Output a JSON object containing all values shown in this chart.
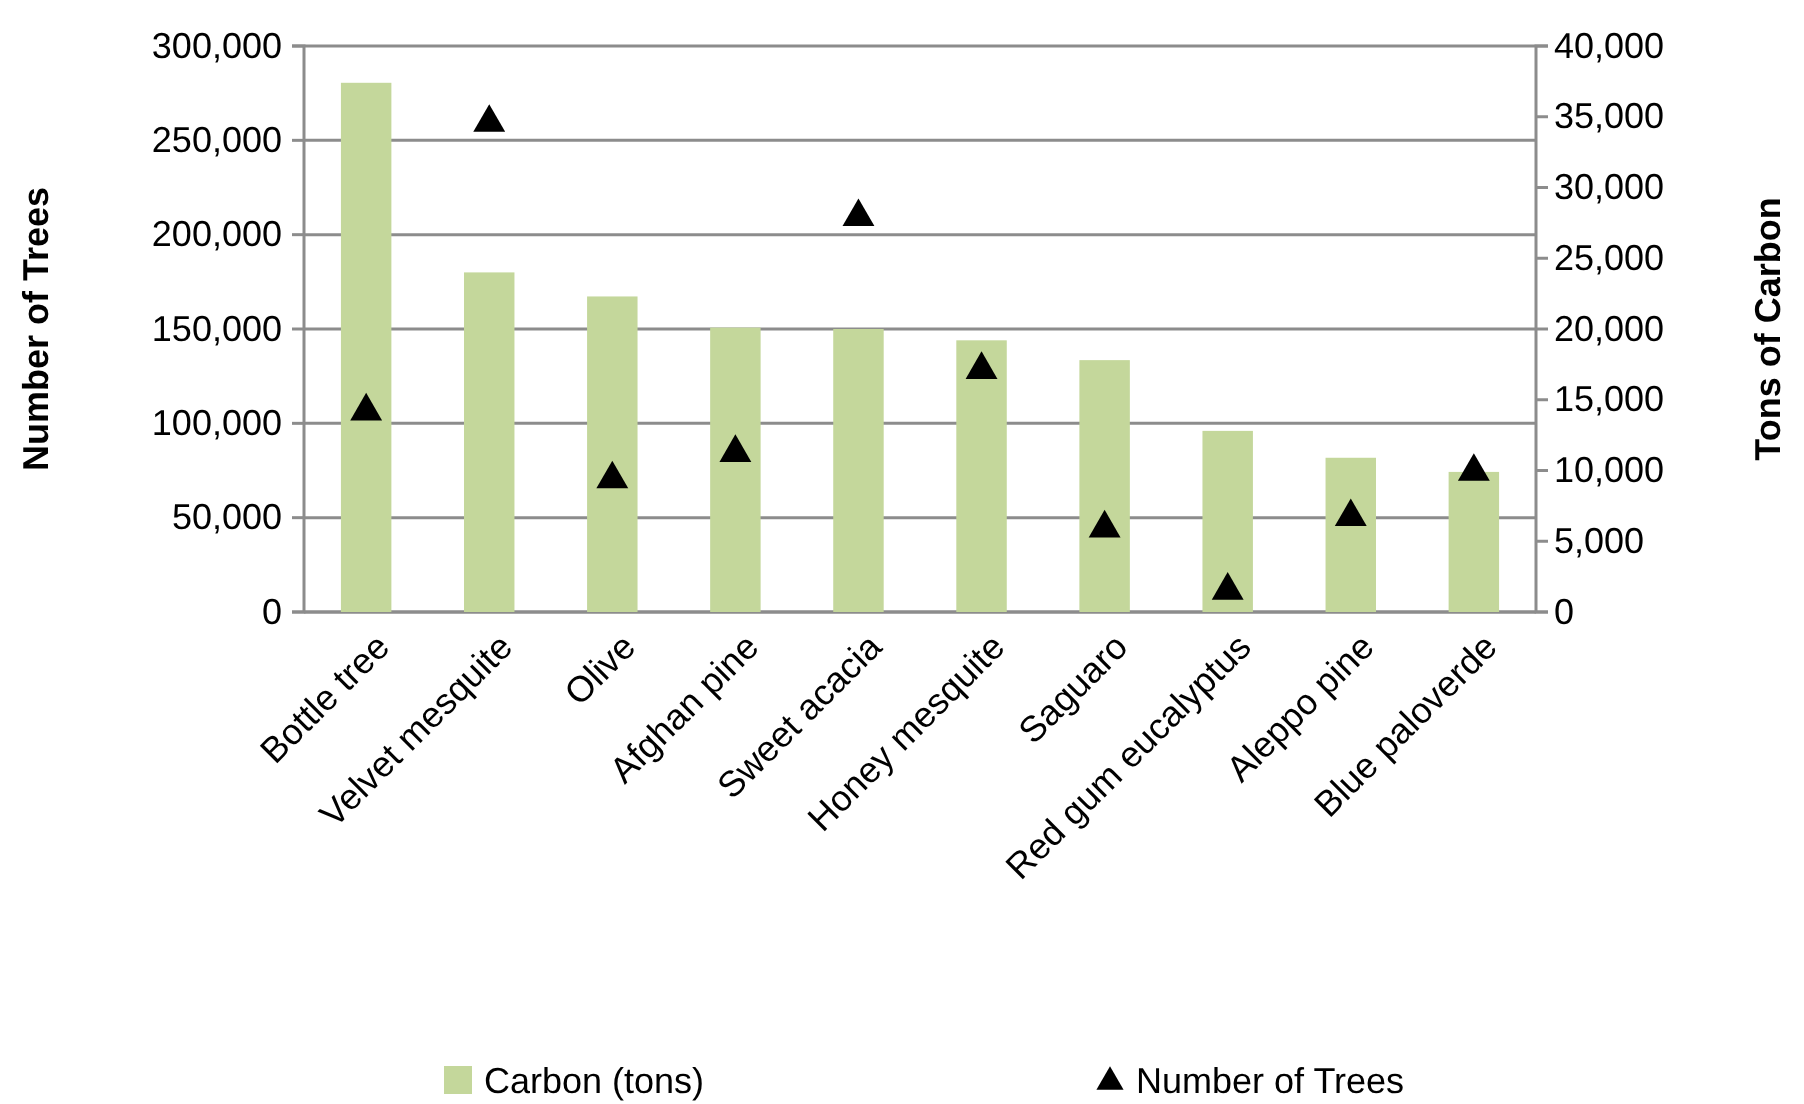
{
  "chart_data": {
    "type": "bar",
    "categories": [
      "Bottle tree",
      "Velvet mesquite",
      "Olive",
      "Afghan pine",
      "Sweet acacia",
      "Honey mesquite",
      "Saguaro",
      "Red gum eucalyptus",
      "Aleppo pine",
      "Blue paloverde"
    ],
    "series": [
      {
        "name": "Carbon (tons)",
        "axis": "y2",
        "color": "#c4d79b",
        "values": [
          37400,
          24000,
          22300,
          20100,
          20000,
          19200,
          17800,
          12800,
          10900,
          9900
        ]
      },
      {
        "name": "Number of Trees",
        "type": "scatter",
        "axis": "y",
        "color": "#000000",
        "marker": "triangle",
        "values": [
          108000,
          261000,
          72000,
          86000,
          211000,
          130000,
          46000,
          13000,
          52000,
          76000
        ]
      }
    ],
    "ylabel": "Number of Trees",
    "y2label": "Tons of Carbon",
    "ylim": [
      0,
      300000
    ],
    "yticks": [
      {
        "value": 0,
        "label": "0"
      },
      {
        "value": 50000,
        "label": "50,000"
      },
      {
        "value": 100000,
        "label": "100,000"
      },
      {
        "value": 150000,
        "label": "150,000"
      },
      {
        "value": 200000,
        "label": "200,000"
      },
      {
        "value": 250000,
        "label": "250,000"
      },
      {
        "value": 300000,
        "label": "300,000"
      }
    ],
    "y2lim": [
      0,
      40000
    ],
    "y2ticks": [
      {
        "value": 0,
        "label": "0"
      },
      {
        "value": 5000,
        "label": "5,000"
      },
      {
        "value": 10000,
        "label": "10,000"
      },
      {
        "value": 15000,
        "label": "15,000"
      },
      {
        "value": 20000,
        "label": "20,000"
      },
      {
        "value": 25000,
        "label": "25,000"
      },
      {
        "value": 30000,
        "label": "30,000"
      },
      {
        "value": 35000,
        "label": "35,000"
      },
      {
        "value": 40000,
        "label": "40,000"
      }
    ],
    "grid": "y",
    "legend": "bottom"
  }
}
